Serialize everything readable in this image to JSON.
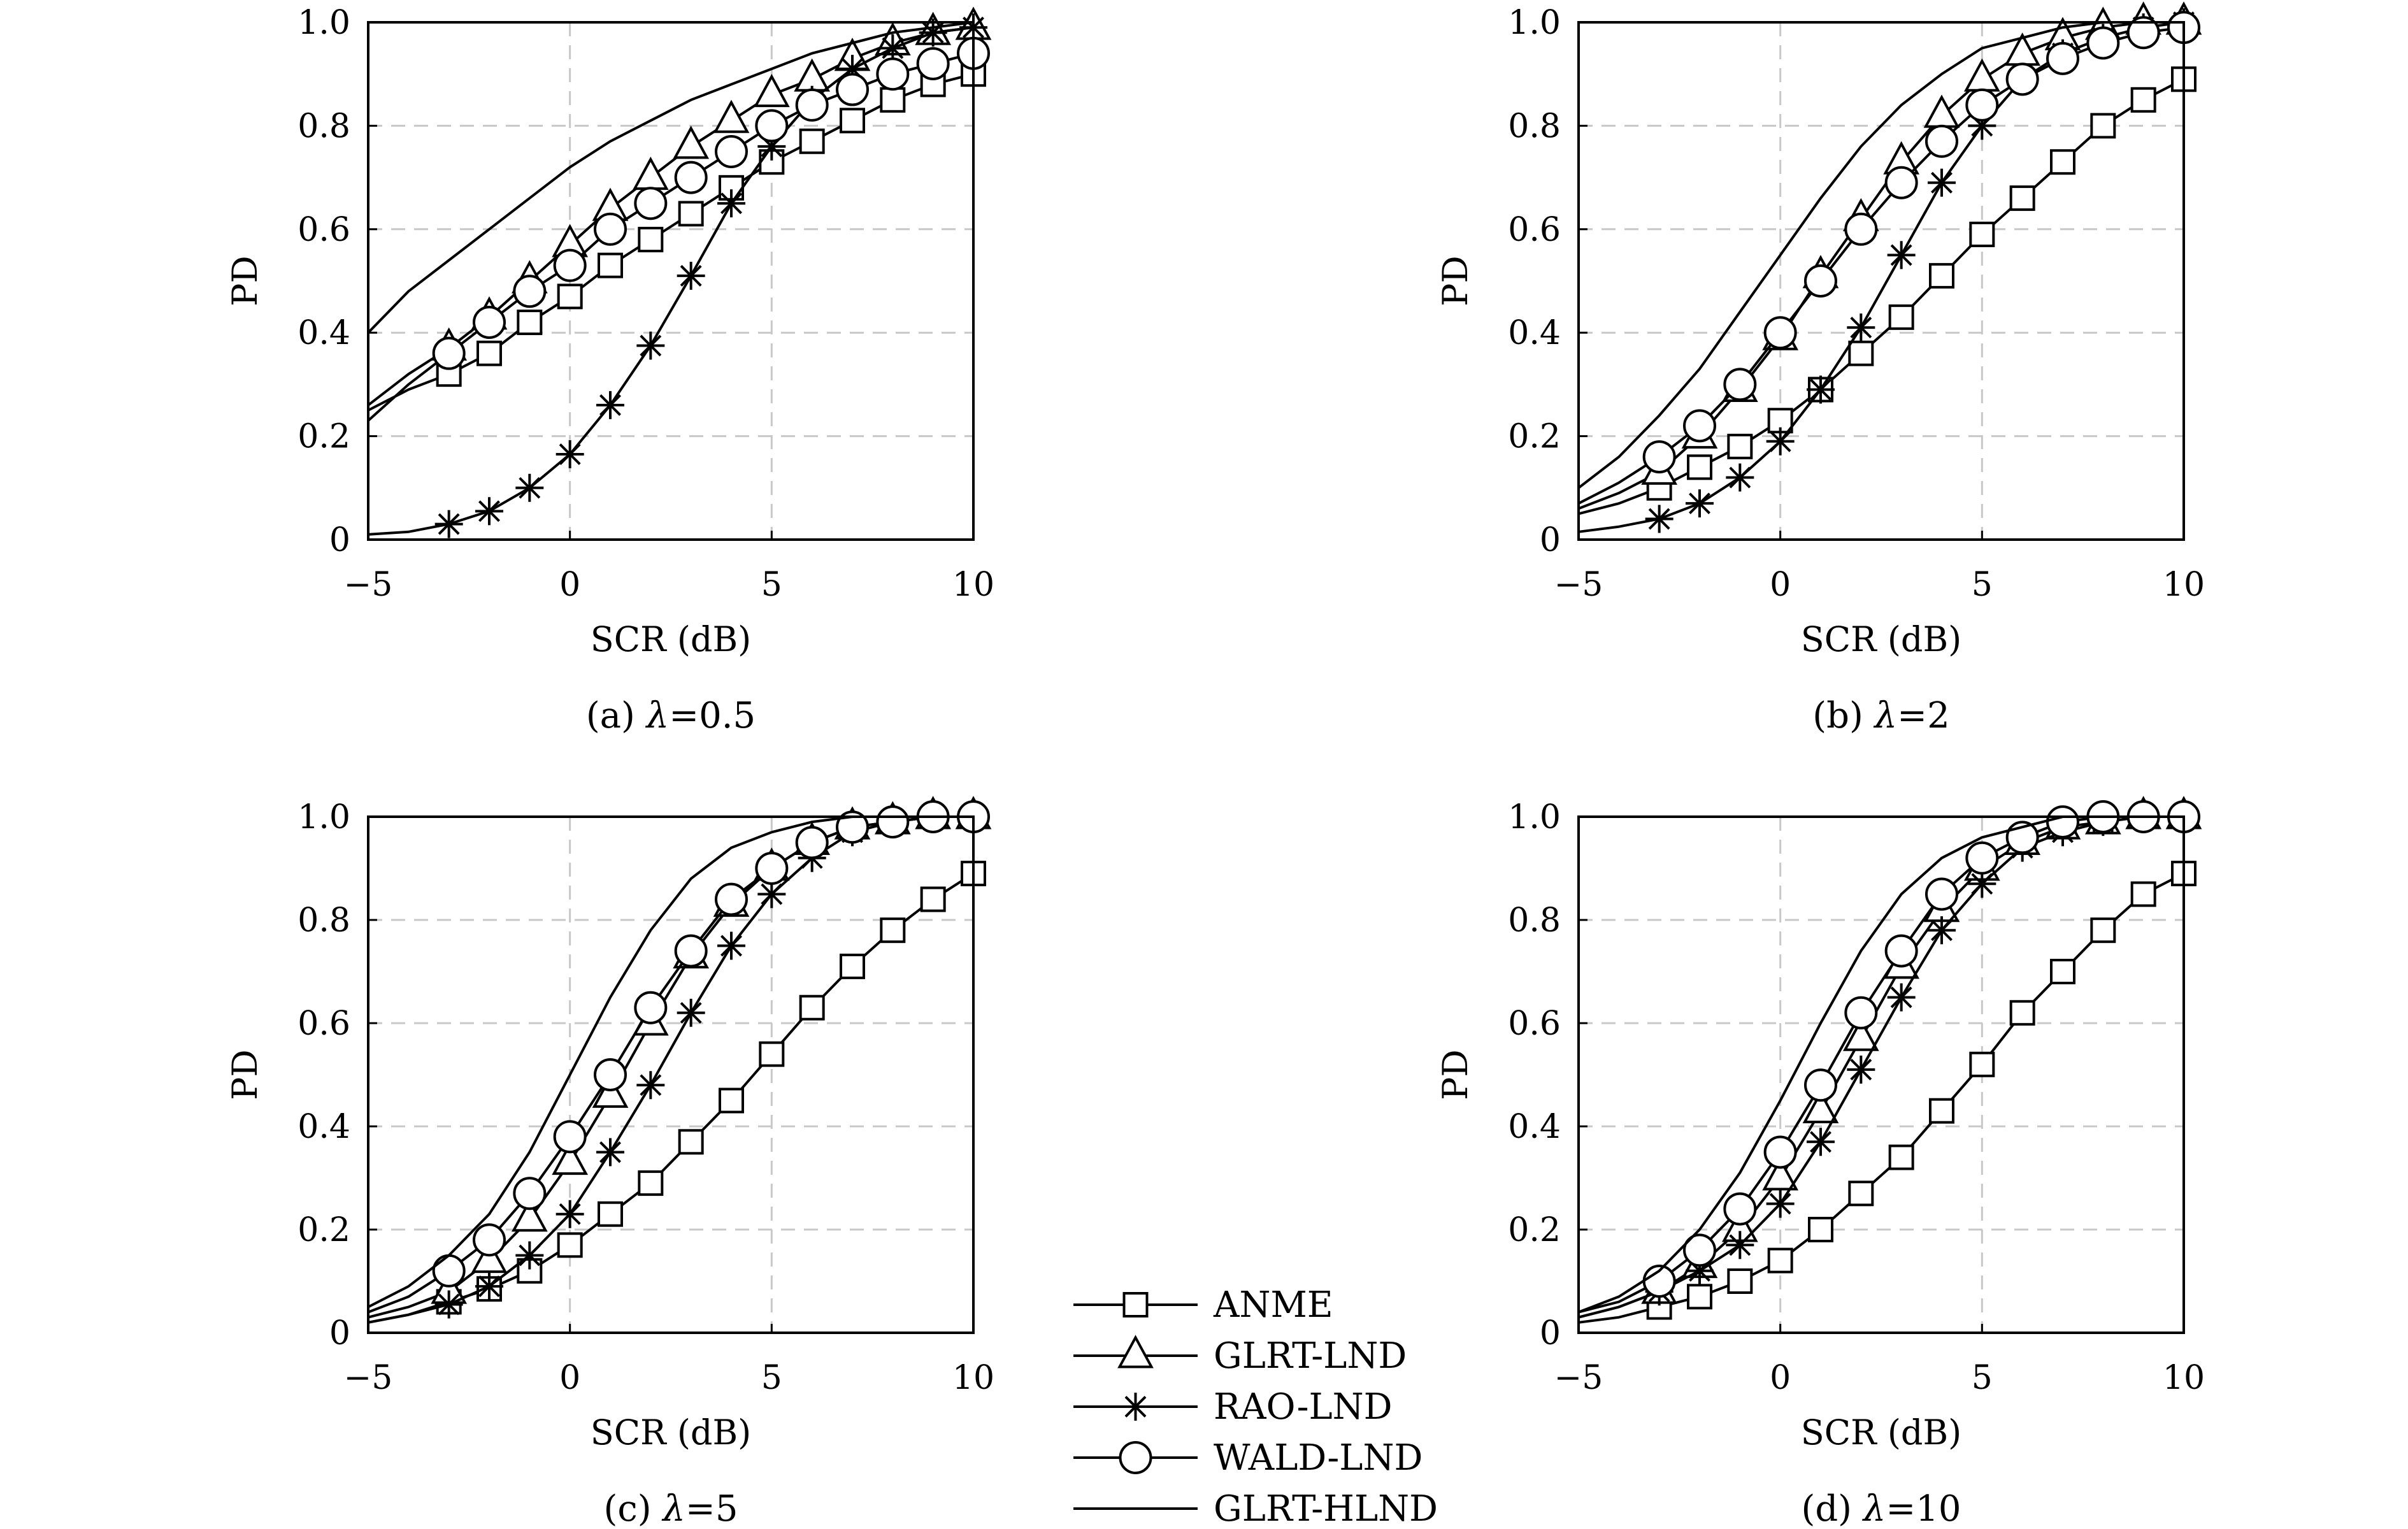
{
  "legend": [
    "ANME",
    "GLRT-LND",
    "RAO-LND",
    "WALD-LND",
    "GLRT-HLND"
  ],
  "chart_data": [
    {
      "type": "line",
      "caption_prefix": "(a) ",
      "caption_symbol": "λ",
      "caption_value": "=0.5",
      "xlabel": "SCR (dB)",
      "ylabel": "PD",
      "xlim": [
        -5,
        10
      ],
      "ylim": [
        0,
        1
      ],
      "xticks": [
        "−5",
        "0",
        "5",
        "10"
      ],
      "yticks": [
        "0",
        "0.2",
        "0.4",
        "0.6",
        "0.8",
        "1.0"
      ],
      "grid": true,
      "series": [
        {
          "name": "ANME",
          "marker": "square",
          "x": [
            -5,
            -4,
            -3,
            -2,
            -1,
            0,
            1,
            2,
            3,
            4,
            5,
            6,
            7,
            8,
            9,
            10
          ],
          "y": [
            0.25,
            0.29,
            0.32,
            0.36,
            0.42,
            0.47,
            0.53,
            0.58,
            0.63,
            0.68,
            0.73,
            0.77,
            0.81,
            0.85,
            0.88,
            0.9
          ]
        },
        {
          "name": "GLRT-LND",
          "marker": "triangle",
          "x": [
            -5,
            -4,
            -3,
            -2,
            -1,
            0,
            1,
            2,
            3,
            4,
            5,
            6,
            7,
            8,
            9,
            10
          ],
          "y": [
            0.26,
            0.32,
            0.37,
            0.43,
            0.5,
            0.57,
            0.64,
            0.7,
            0.76,
            0.81,
            0.86,
            0.89,
            0.93,
            0.96,
            0.98,
            0.99
          ]
        },
        {
          "name": "RAO-LND",
          "marker": "star",
          "x": [
            -5,
            -4,
            -3,
            -2,
            -1,
            0,
            1,
            2,
            3,
            4,
            5,
            6,
            7,
            8,
            9,
            10
          ],
          "y": [
            0.01,
            0.015,
            0.03,
            0.055,
            0.1,
            0.165,
            0.26,
            0.375,
            0.51,
            0.65,
            0.76,
            0.85,
            0.91,
            0.95,
            0.98,
            0.99
          ]
        },
        {
          "name": "WALD-LND",
          "marker": "circle",
          "x": [
            -5,
            -4,
            -3,
            -2,
            -1,
            0,
            1,
            2,
            3,
            4,
            5,
            6,
            7,
            8,
            9,
            10
          ],
          "y": [
            0.23,
            0.3,
            0.36,
            0.42,
            0.48,
            0.53,
            0.6,
            0.65,
            0.7,
            0.75,
            0.8,
            0.84,
            0.87,
            0.9,
            0.92,
            0.94
          ]
        },
        {
          "name": "GLRT-HLND",
          "marker": "none",
          "x": [
            -5,
            -4,
            -3,
            -2,
            -1,
            0,
            1,
            2,
            3,
            4,
            5,
            6,
            7,
            8,
            9,
            10
          ],
          "y": [
            0.4,
            0.48,
            0.54,
            0.6,
            0.66,
            0.72,
            0.77,
            0.81,
            0.85,
            0.88,
            0.91,
            0.94,
            0.96,
            0.98,
            0.99,
            1.0
          ]
        }
      ]
    },
    {
      "type": "line",
      "caption_prefix": "(b) ",
      "caption_symbol": "λ",
      "caption_value": "=2",
      "xlabel": "SCR (dB)",
      "ylabel": "PD",
      "xlim": [
        -5,
        10
      ],
      "ylim": [
        0,
        1
      ],
      "xticks": [
        "−5",
        "0",
        "5",
        "10"
      ],
      "yticks": [
        "0",
        "0.2",
        "0.4",
        "0.6",
        "0.8",
        "1.0"
      ],
      "grid": true,
      "series": [
        {
          "name": "ANME",
          "marker": "square",
          "x": [
            -5,
            -4,
            -3,
            -2,
            -1,
            0,
            1,
            2,
            3,
            4,
            5,
            6,
            7,
            8,
            9,
            10
          ],
          "y": [
            0.05,
            0.07,
            0.1,
            0.14,
            0.18,
            0.23,
            0.29,
            0.36,
            0.43,
            0.51,
            0.59,
            0.66,
            0.73,
            0.8,
            0.85,
            0.89
          ]
        },
        {
          "name": "GLRT-LND",
          "marker": "triangle",
          "x": [
            -5,
            -4,
            -3,
            -2,
            -1,
            0,
            1,
            2,
            3,
            4,
            5,
            6,
            7,
            8,
            9,
            10
          ],
          "y": [
            0.06,
            0.09,
            0.13,
            0.2,
            0.29,
            0.39,
            0.51,
            0.62,
            0.73,
            0.82,
            0.89,
            0.94,
            0.97,
            0.99,
            1.0,
            1.0
          ]
        },
        {
          "name": "RAO-LND",
          "marker": "star",
          "x": [
            -5,
            -4,
            -3,
            -2,
            -1,
            0,
            1,
            2,
            3,
            4,
            5,
            6,
            7,
            8,
            9,
            10
          ],
          "y": [
            0.015,
            0.025,
            0.04,
            0.07,
            0.12,
            0.19,
            0.29,
            0.41,
            0.55,
            0.69,
            0.8,
            0.89,
            0.94,
            0.97,
            0.99,
            1.0
          ]
        },
        {
          "name": "WALD-LND",
          "marker": "circle",
          "x": [
            -5,
            -4,
            -3,
            -2,
            -1,
            0,
            1,
            2,
            3,
            4,
            5,
            6,
            7,
            8,
            9,
            10
          ],
          "y": [
            0.07,
            0.11,
            0.16,
            0.22,
            0.3,
            0.4,
            0.5,
            0.6,
            0.69,
            0.77,
            0.84,
            0.89,
            0.93,
            0.96,
            0.98,
            0.99
          ]
        },
        {
          "name": "GLRT-HLND",
          "marker": "none",
          "x": [
            -5,
            -4,
            -3,
            -2,
            -1,
            0,
            1,
            2,
            3,
            4,
            5,
            6,
            7,
            8,
            9,
            10
          ],
          "y": [
            0.1,
            0.16,
            0.24,
            0.33,
            0.44,
            0.55,
            0.66,
            0.76,
            0.84,
            0.9,
            0.95,
            0.97,
            0.99,
            1.0,
            1.0,
            1.0
          ]
        }
      ]
    },
    {
      "type": "line",
      "caption_prefix": "(c) ",
      "caption_symbol": "λ",
      "caption_value": "=5",
      "xlabel": "SCR (dB)",
      "ylabel": "PD",
      "xlim": [
        -5,
        10
      ],
      "ylim": [
        0,
        1
      ],
      "xticks": [
        "−5",
        "0",
        "5",
        "10"
      ],
      "yticks": [
        "0",
        "0.2",
        "0.4",
        "0.6",
        "0.8",
        "1.0"
      ],
      "grid": true,
      "series": [
        {
          "name": "ANME",
          "marker": "square",
          "x": [
            -5,
            -4,
            -3,
            -2,
            -1,
            0,
            1,
            2,
            3,
            4,
            5,
            6,
            7,
            8,
            9,
            10
          ],
          "y": [
            0.02,
            0.035,
            0.06,
            0.085,
            0.12,
            0.17,
            0.23,
            0.29,
            0.37,
            0.45,
            0.54,
            0.63,
            0.71,
            0.78,
            0.84,
            0.89
          ]
        },
        {
          "name": "GLRT-LND",
          "marker": "triangle",
          "x": [
            -5,
            -4,
            -3,
            -2,
            -1,
            0,
            1,
            2,
            3,
            4,
            5,
            6,
            7,
            8,
            9,
            10
          ],
          "y": [
            0.03,
            0.05,
            0.08,
            0.14,
            0.22,
            0.33,
            0.46,
            0.6,
            0.73,
            0.83,
            0.9,
            0.95,
            0.98,
            0.99,
            1.0,
            1.0
          ]
        },
        {
          "name": "RAO-LND",
          "marker": "star",
          "x": [
            -5,
            -4,
            -3,
            -2,
            -1,
            0,
            1,
            2,
            3,
            4,
            5,
            6,
            7,
            8,
            9,
            10
          ],
          "y": [
            0.02,
            0.035,
            0.055,
            0.09,
            0.15,
            0.23,
            0.35,
            0.48,
            0.62,
            0.75,
            0.85,
            0.92,
            0.97,
            0.99,
            1.0,
            1.0
          ]
        },
        {
          "name": "WALD-LND",
          "marker": "circle",
          "x": [
            -5,
            -4,
            -3,
            -2,
            -1,
            0,
            1,
            2,
            3,
            4,
            5,
            6,
            7,
            8,
            9,
            10
          ],
          "y": [
            0.04,
            0.07,
            0.12,
            0.18,
            0.27,
            0.38,
            0.5,
            0.63,
            0.74,
            0.84,
            0.9,
            0.95,
            0.98,
            0.99,
            1.0,
            1.0
          ]
        },
        {
          "name": "GLRT-HLND",
          "marker": "none",
          "x": [
            -5,
            -4,
            -3,
            -2,
            -1,
            0,
            1,
            2,
            3,
            4,
            5,
            6,
            7,
            8,
            9,
            10
          ],
          "y": [
            0.05,
            0.09,
            0.15,
            0.23,
            0.35,
            0.5,
            0.65,
            0.78,
            0.88,
            0.94,
            0.97,
            0.99,
            1.0,
            1.0,
            1.0,
            1.0
          ]
        }
      ]
    },
    {
      "type": "line",
      "caption_prefix": "(d) ",
      "caption_symbol": "λ",
      "caption_value": "=10",
      "xlabel": "SCR (dB)",
      "ylabel": "PD",
      "xlim": [
        -5,
        10
      ],
      "ylim": [
        0,
        1
      ],
      "xticks": [
        "−5",
        "0",
        "5",
        "10"
      ],
      "yticks": [
        "0",
        "0.2",
        "0.4",
        "0.6",
        "0.8",
        "1.0"
      ],
      "grid": true,
      "series": [
        {
          "name": "ANME",
          "marker": "square",
          "x": [
            -5,
            -4,
            -3,
            -2,
            -1,
            0,
            1,
            2,
            3,
            4,
            5,
            6,
            7,
            8,
            9,
            10
          ],
          "y": [
            0.02,
            0.03,
            0.05,
            0.07,
            0.1,
            0.14,
            0.2,
            0.27,
            0.34,
            0.43,
            0.52,
            0.62,
            0.7,
            0.78,
            0.85,
            0.89
          ]
        },
        {
          "name": "GLRT-LND",
          "marker": "triangle",
          "x": [
            -5,
            -4,
            -3,
            -2,
            -1,
            0,
            1,
            2,
            3,
            4,
            5,
            6,
            7,
            8,
            9,
            10
          ],
          "y": [
            0.03,
            0.05,
            0.08,
            0.13,
            0.2,
            0.3,
            0.43,
            0.57,
            0.71,
            0.82,
            0.9,
            0.95,
            0.98,
            0.99,
            1.0,
            1.0
          ]
        },
        {
          "name": "RAO-LND",
          "marker": "star",
          "x": [
            -5,
            -4,
            -3,
            -2,
            -1,
            0,
            1,
            2,
            3,
            4,
            5,
            6,
            7,
            8,
            9,
            10
          ],
          "y": [
            0.03,
            0.05,
            0.08,
            0.12,
            0.17,
            0.25,
            0.37,
            0.51,
            0.65,
            0.78,
            0.87,
            0.94,
            0.97,
            0.99,
            1.0,
            1.0
          ]
        },
        {
          "name": "WALD-LND",
          "marker": "circle",
          "x": [
            -5,
            -4,
            -3,
            -2,
            -1,
            0,
            1,
            2,
            3,
            4,
            5,
            6,
            7,
            8,
            9,
            10
          ],
          "y": [
            0.04,
            0.06,
            0.1,
            0.16,
            0.24,
            0.35,
            0.48,
            0.62,
            0.74,
            0.85,
            0.92,
            0.96,
            0.99,
            1.0,
            1.0,
            1.0
          ]
        },
        {
          "name": "GLRT-HLND",
          "marker": "none",
          "x": [
            -5,
            -4,
            -3,
            -2,
            -1,
            0,
            1,
            2,
            3,
            4,
            5,
            6,
            7,
            8,
            9,
            10
          ],
          "y": [
            0.04,
            0.07,
            0.12,
            0.2,
            0.31,
            0.45,
            0.6,
            0.74,
            0.85,
            0.92,
            0.96,
            0.98,
            1.0,
            1.0,
            1.0,
            1.0
          ]
        }
      ]
    }
  ]
}
